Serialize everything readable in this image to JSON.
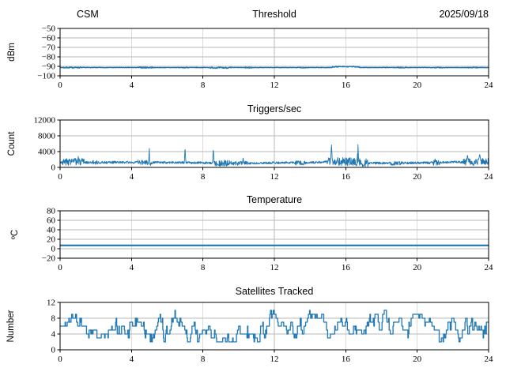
{
  "figure": {
    "background": "#ffffff",
    "accent_color": "#1f77b4",
    "grid_color": "#b9b9b9"
  },
  "chart_data": [
    {
      "type": "line",
      "name": "threshold",
      "title": "Threshold",
      "title_left": "CSM",
      "title_right": "2025/09/18",
      "ylabel": "dBm",
      "xlabel": "",
      "xlim": [
        0,
        24
      ],
      "ylim": [
        -100,
        -50
      ],
      "xticks": [
        0,
        4,
        8,
        12,
        16,
        20,
        24
      ],
      "yticks": [
        -100,
        -90,
        -80,
        -70,
        -60,
        -50
      ],
      "grid": true,
      "series": [
        {
          "name": "threshold_dbm",
          "color": "#1f77b4",
          "line_width": 1.4,
          "gen": {
            "kind": "noisy",
            "seed": 7,
            "points": 1300,
            "anchors": [
              [
                0,
                -91.3
              ],
              [
                24,
                -91.3
              ]
            ],
            "noise_amp": 0.22,
            "noise_segments": [
              [
                0.15,
                1.15,
                0.55,
                0
              ],
              [
                4.4,
                5.2,
                0.6,
                0
              ],
              [
                6.85,
                7.2,
                0.45,
                0
              ],
              [
                8.4,
                9.6,
                0.7,
                -0.2
              ],
              [
                10.35,
                10.75,
                0.55,
                0
              ],
              [
                13.4,
                13.9,
                0.45,
                0
              ],
              [
                15.25,
                16.75,
                0.5,
                0.9
              ],
              [
                18.85,
                19.4,
                0.45,
                0
              ],
              [
                20.9,
                21.45,
                0.5,
                0
              ],
              [
                22.85,
                23.4,
                0.45,
                0
              ]
            ],
            "spikes": [],
            "dips": [],
            "clamp": [
              -99,
              -50.5
            ]
          }
        }
      ]
    },
    {
      "type": "line",
      "name": "triggers",
      "title": "Triggers/sec",
      "ylabel": "Count",
      "xlabel": "",
      "xlim": [
        0,
        24
      ],
      "ylim": [
        0,
        12000
      ],
      "xticks": [
        0,
        4,
        8,
        12,
        16,
        20,
        24
      ],
      "yticks": [
        0,
        4000,
        8000,
        12000
      ],
      "grid": true,
      "series": [
        {
          "name": "triggers_per_sec",
          "color": "#1f77b4",
          "line_width": 0.9,
          "gen": {
            "kind": "noisy",
            "seed": 3,
            "points": 1700,
            "anchors": [
              [
                0,
                1350
              ],
              [
                0.7,
                1500
              ],
              [
                1.5,
                1250
              ],
              [
                3,
                1250
              ],
              [
                5,
                1300
              ],
              [
                8,
                1150
              ],
              [
                9,
                1100
              ],
              [
                10,
                1050
              ],
              [
                12,
                1150
              ],
              [
                14,
                1200
              ],
              [
                15,
                1450
              ],
              [
                16,
                1500
              ],
              [
                17.3,
                1100
              ],
              [
                19,
                1100
              ],
              [
                21,
                1200
              ],
              [
                22.5,
                1350
              ],
              [
                23.5,
                1550
              ],
              [
                24,
                1500
              ]
            ],
            "noise_amp": 300,
            "noise_segments": [
              [
                0.1,
                1.35,
                900,
                0
              ],
              [
                1.8,
                2.1,
                500,
                0
              ],
              [
                2.9,
                3.15,
                450,
                0
              ],
              [
                4.35,
                5.15,
                650,
                0
              ],
              [
                8.65,
                9.5,
                800,
                0
              ],
              [
                9.5,
                10.5,
                500,
                0
              ],
              [
                13.15,
                13.8,
                500,
                0
              ],
              [
                14.95,
                17.25,
                1050,
                0
              ],
              [
                18.4,
                19.15,
                520,
                0
              ],
              [
                20.9,
                21.25,
                700,
                0
              ],
              [
                22.55,
                24,
                850,
                0
              ]
            ],
            "spikes": [
              [
                1.02,
                2950,
                0.05
              ],
              [
                5.0,
                4850,
                0.055
              ],
              [
                7.0,
                5100,
                0.055
              ],
              [
                8.58,
                4800,
                0.055
              ],
              [
                10.25,
                2600,
                0.06
              ],
              [
                15.2,
                5750,
                0.065
              ],
              [
                16.68,
                6050,
                0.06
              ],
              [
                21.0,
                2400,
                0.05
              ],
              [
                22.82,
                3250,
                0.09
              ],
              [
                23.5,
                3400,
                0.12
              ]
            ],
            "dips": [
              [
                5.06,
                300,
                0.05
              ],
              [
                8.95,
                250,
                0.2
              ],
              [
                9.95,
                420,
                0.05
              ],
              [
                13.2,
                480,
                0.05
              ],
              [
                13.6,
                430,
                0.05
              ],
              [
                16.6,
                350,
                0.08
              ],
              [
                17.0,
                320,
                0.15
              ],
              [
                18.6,
                520,
                0.1
              ],
              [
                23.15,
                380,
                0.06
              ]
            ],
            "clamp": [
              120,
              11800
            ]
          }
        }
      ]
    },
    {
      "type": "line",
      "name": "temperature",
      "title": "Temperature",
      "ylabel": "ºC",
      "xlabel": "",
      "xlim": [
        0,
        24
      ],
      "ylim": [
        -20,
        80
      ],
      "xticks": [
        0,
        4,
        8,
        12,
        16,
        20,
        24
      ],
      "yticks": [
        -20,
        0,
        20,
        40,
        60,
        80
      ],
      "grid": true,
      "series": [
        {
          "name": "temperature_c",
          "color": "#1f77b4",
          "line_width": 2.2,
          "gen": {
            "kind": "const",
            "value": 7
          }
        }
      ]
    },
    {
      "type": "line",
      "name": "satellites",
      "title": "Satellites Tracked",
      "ylabel": "Number",
      "xlabel": "",
      "xlim": [
        0,
        24
      ],
      "ylim": [
        0,
        12
      ],
      "xticks": [
        0,
        4,
        8,
        12,
        16,
        20,
        24
      ],
      "yticks": [
        0,
        4,
        8,
        12
      ],
      "grid": true,
      "series": [
        {
          "name": "satellites_tracked",
          "color": "#1f77b4",
          "line_width": 1.3,
          "gen": {
            "kind": "telegraph",
            "seed": 11,
            "points": 780,
            "min": 2,
            "max": 10,
            "start": 6,
            "step": 2,
            "change_prob": 0.5
          }
        }
      ]
    }
  ]
}
